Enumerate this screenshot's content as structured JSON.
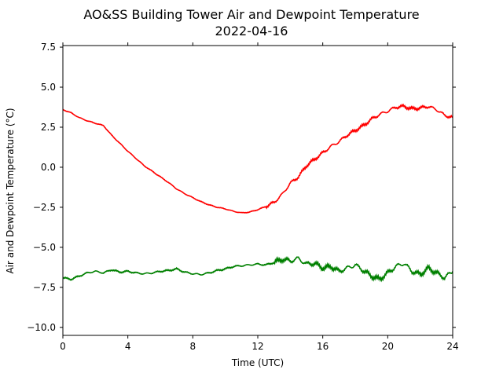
{
  "chart_data": {
    "type": "line",
    "title": "AO&SS Building Tower Air and Dewpoint Temperature",
    "subtitle": "2022-04-16",
    "xlabel": "Time (UTC)",
    "ylabel": "Air and Dewpoint Temperature (°C)",
    "xlim": [
      0,
      24
    ],
    "ylim": [
      -10.5,
      7.6
    ],
    "xticks": [
      0,
      4,
      8,
      12,
      16,
      20,
      24
    ],
    "xtick_labels": [
      "0",
      "4",
      "8",
      "12",
      "16",
      "20",
      "24"
    ],
    "yticks": [
      7.5,
      5.0,
      2.5,
      0.0,
      -2.5,
      -5.0,
      -7.5,
      -10.0
    ],
    "ytick_labels": [
      "7.5",
      "5.0",
      "2.5",
      "0.0",
      "−2.5",
      "−5.0",
      "−7.5",
      "−10.0"
    ],
    "grid": false,
    "legend": "none",
    "series": [
      {
        "color": "#ff0000",
        "x": [
          0,
          0.5,
          1,
          1.5,
          2,
          2.5,
          3,
          3.5,
          4,
          4.5,
          5,
          5.5,
          6,
          6.5,
          7,
          7.5,
          8,
          8.5,
          9,
          9.5,
          10,
          10.5,
          11,
          11.5,
          12,
          12.5,
          13,
          13.5,
          14,
          14.5,
          15,
          15.5,
          16,
          16.5,
          17,
          17.5,
          18,
          18.5,
          19,
          19.5,
          20,
          20.5,
          21,
          21.5,
          22,
          22.5,
          23,
          23.5,
          24
        ],
        "y": [
          3.6,
          3.4,
          3.1,
          2.9,
          2.75,
          2.6,
          2.0,
          1.5,
          1.0,
          0.55,
          0.1,
          -0.25,
          -0.6,
          -0.95,
          -1.35,
          -1.65,
          -1.9,
          -2.15,
          -2.35,
          -2.5,
          -2.6,
          -2.75,
          -2.85,
          -2.8,
          -2.65,
          -2.45,
          -2.2,
          -1.7,
          -1.0,
          -0.6,
          0.1,
          0.5,
          0.9,
          1.3,
          1.6,
          2.0,
          2.3,
          2.6,
          3.0,
          3.3,
          3.5,
          3.75,
          3.8,
          3.65,
          3.7,
          3.8,
          3.6,
          3.25,
          3.1
        ]
      },
      {
        "color": "#008000",
        "x": [
          0,
          0.5,
          1,
          1.5,
          2,
          2.5,
          3,
          3.5,
          4,
          4.5,
          5,
          5.5,
          6,
          6.5,
          7,
          7.5,
          8,
          8.5,
          9,
          9.5,
          10,
          10.5,
          11,
          11.5,
          12,
          12.5,
          13,
          13.5,
          14,
          14.5,
          15,
          15.5,
          16,
          16.5,
          17,
          17.5,
          18,
          18.5,
          19,
          19.5,
          20,
          20.5,
          21,
          21.5,
          22,
          22.5,
          23,
          23.5,
          24
        ],
        "y": [
          -6.9,
          -7.0,
          -6.8,
          -6.6,
          -6.5,
          -6.6,
          -6.4,
          -6.55,
          -6.5,
          -6.6,
          -6.65,
          -6.6,
          -6.5,
          -6.45,
          -6.35,
          -6.55,
          -6.65,
          -6.7,
          -6.6,
          -6.45,
          -6.35,
          -6.2,
          -6.15,
          -6.1,
          -6.05,
          -6.1,
          -5.95,
          -5.75,
          -5.85,
          -5.7,
          -6.05,
          -6.0,
          -6.3,
          -6.2,
          -6.5,
          -6.3,
          -6.1,
          -6.45,
          -6.8,
          -7.0,
          -6.6,
          -6.2,
          -6.0,
          -6.5,
          -6.7,
          -6.3,
          -6.6,
          -6.9,
          -6.5
        ]
      }
    ]
  }
}
